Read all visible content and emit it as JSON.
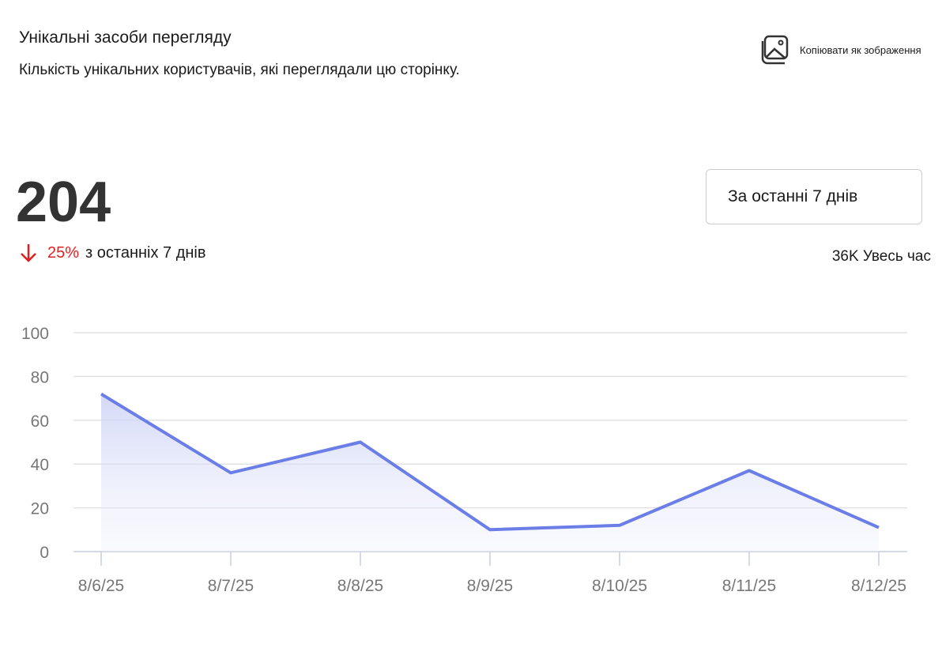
{
  "header": {
    "title": "Унікальні засоби перегляду",
    "subtitle": "Кількість унікальних користувачів, які переглядали цю сторінку.",
    "copy_button": "Копіювати як зображення"
  },
  "summary": {
    "total": 204,
    "change": "25%",
    "change_text": "з останніх 7 днів",
    "period_select": "За останні 7 днів",
    "all_time": "36K Увесь час"
  },
  "chart_data": {
    "type": "area",
    "categories": [
      "8/6/25",
      "8/7/25",
      "8/8/25",
      "8/9/25",
      "8/10/25",
      "8/11/25",
      "8/12/25"
    ],
    "values": [
      72,
      36,
      50,
      10,
      12,
      37,
      11
    ],
    "color": "#6b7de6",
    "ylim": [
      0,
      100
    ],
    "yticks": [
      0,
      20,
      40,
      60,
      80,
      100
    ],
    "grid": true
  }
}
